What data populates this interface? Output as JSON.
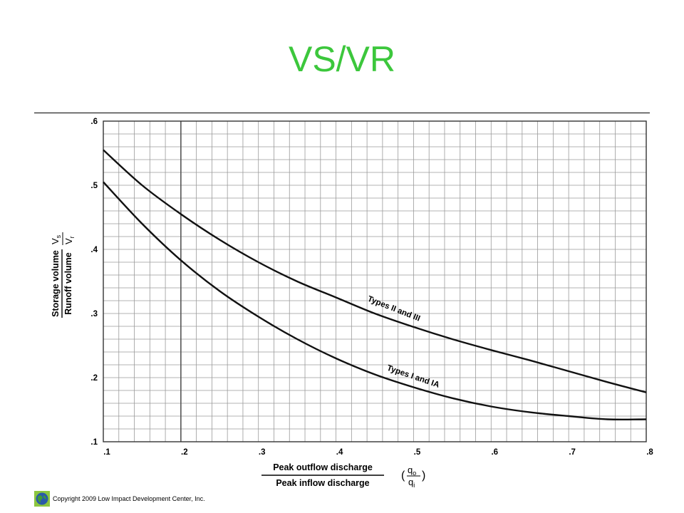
{
  "slide": {
    "title": "VS/VR",
    "footer": "Copyright 2009 Low Impact Development Center, Inc.",
    "title_color": "#3cc73c"
  },
  "chart_data": {
    "type": "line",
    "title": "",
    "xlabel_top": "Peak outflow discharge",
    "xlabel_bottom": "Peak inflow discharge",
    "xsymbol_num": "q",
    "xsymbol_num_sub": "o",
    "xsymbol_den": "q",
    "xsymbol_den_sub": "i",
    "ylabel_top": "Storage volume",
    "ylabel_bottom": "Runoff volume",
    "ysymbol_num": "V",
    "ysymbol_num_sub": "s",
    "ysymbol_den": "V",
    "ysymbol_den_sub": "r",
    "xlim": [
      0.1,
      0.8
    ],
    "ylim": [
      0.1,
      0.6
    ],
    "xticks": [
      0.1,
      0.2,
      0.3,
      0.4,
      0.5,
      0.6,
      0.7,
      0.8
    ],
    "xtick_labels": [
      ".1",
      ".2",
      ".3",
      ".4",
      ".5",
      ".6",
      ".7",
      ".8"
    ],
    "yticks": [
      0.1,
      0.2,
      0.3,
      0.4,
      0.5,
      0.6
    ],
    "ytick_labels": [
      ".1",
      ".2",
      ".3",
      ".4",
      ".5",
      ".6"
    ],
    "grid": true,
    "grid_x_step": 0.02,
    "grid_y_step": 0.02,
    "series": [
      {
        "name": "Types II and III",
        "x": [
          0.1,
          0.15,
          0.2,
          0.25,
          0.3,
          0.35,
          0.4,
          0.45,
          0.5,
          0.55,
          0.6,
          0.65,
          0.7,
          0.75,
          0.8
        ],
        "y": [
          0.555,
          0.5,
          0.455,
          0.415,
          0.38,
          0.35,
          0.325,
          0.3,
          0.279,
          0.26,
          0.243,
          0.227,
          0.21,
          0.193,
          0.177
        ],
        "label_at": [
          0.44,
          0.32
        ]
      },
      {
        "name": "Types I and IA",
        "x": [
          0.1,
          0.15,
          0.2,
          0.25,
          0.3,
          0.35,
          0.4,
          0.45,
          0.5,
          0.55,
          0.6,
          0.65,
          0.7,
          0.75,
          0.8
        ],
        "y": [
          0.505,
          0.44,
          0.383,
          0.335,
          0.295,
          0.26,
          0.23,
          0.205,
          0.185,
          0.168,
          0.155,
          0.146,
          0.14,
          0.135,
          0.135
        ],
        "label_at": [
          0.465,
          0.212
        ]
      }
    ]
  }
}
